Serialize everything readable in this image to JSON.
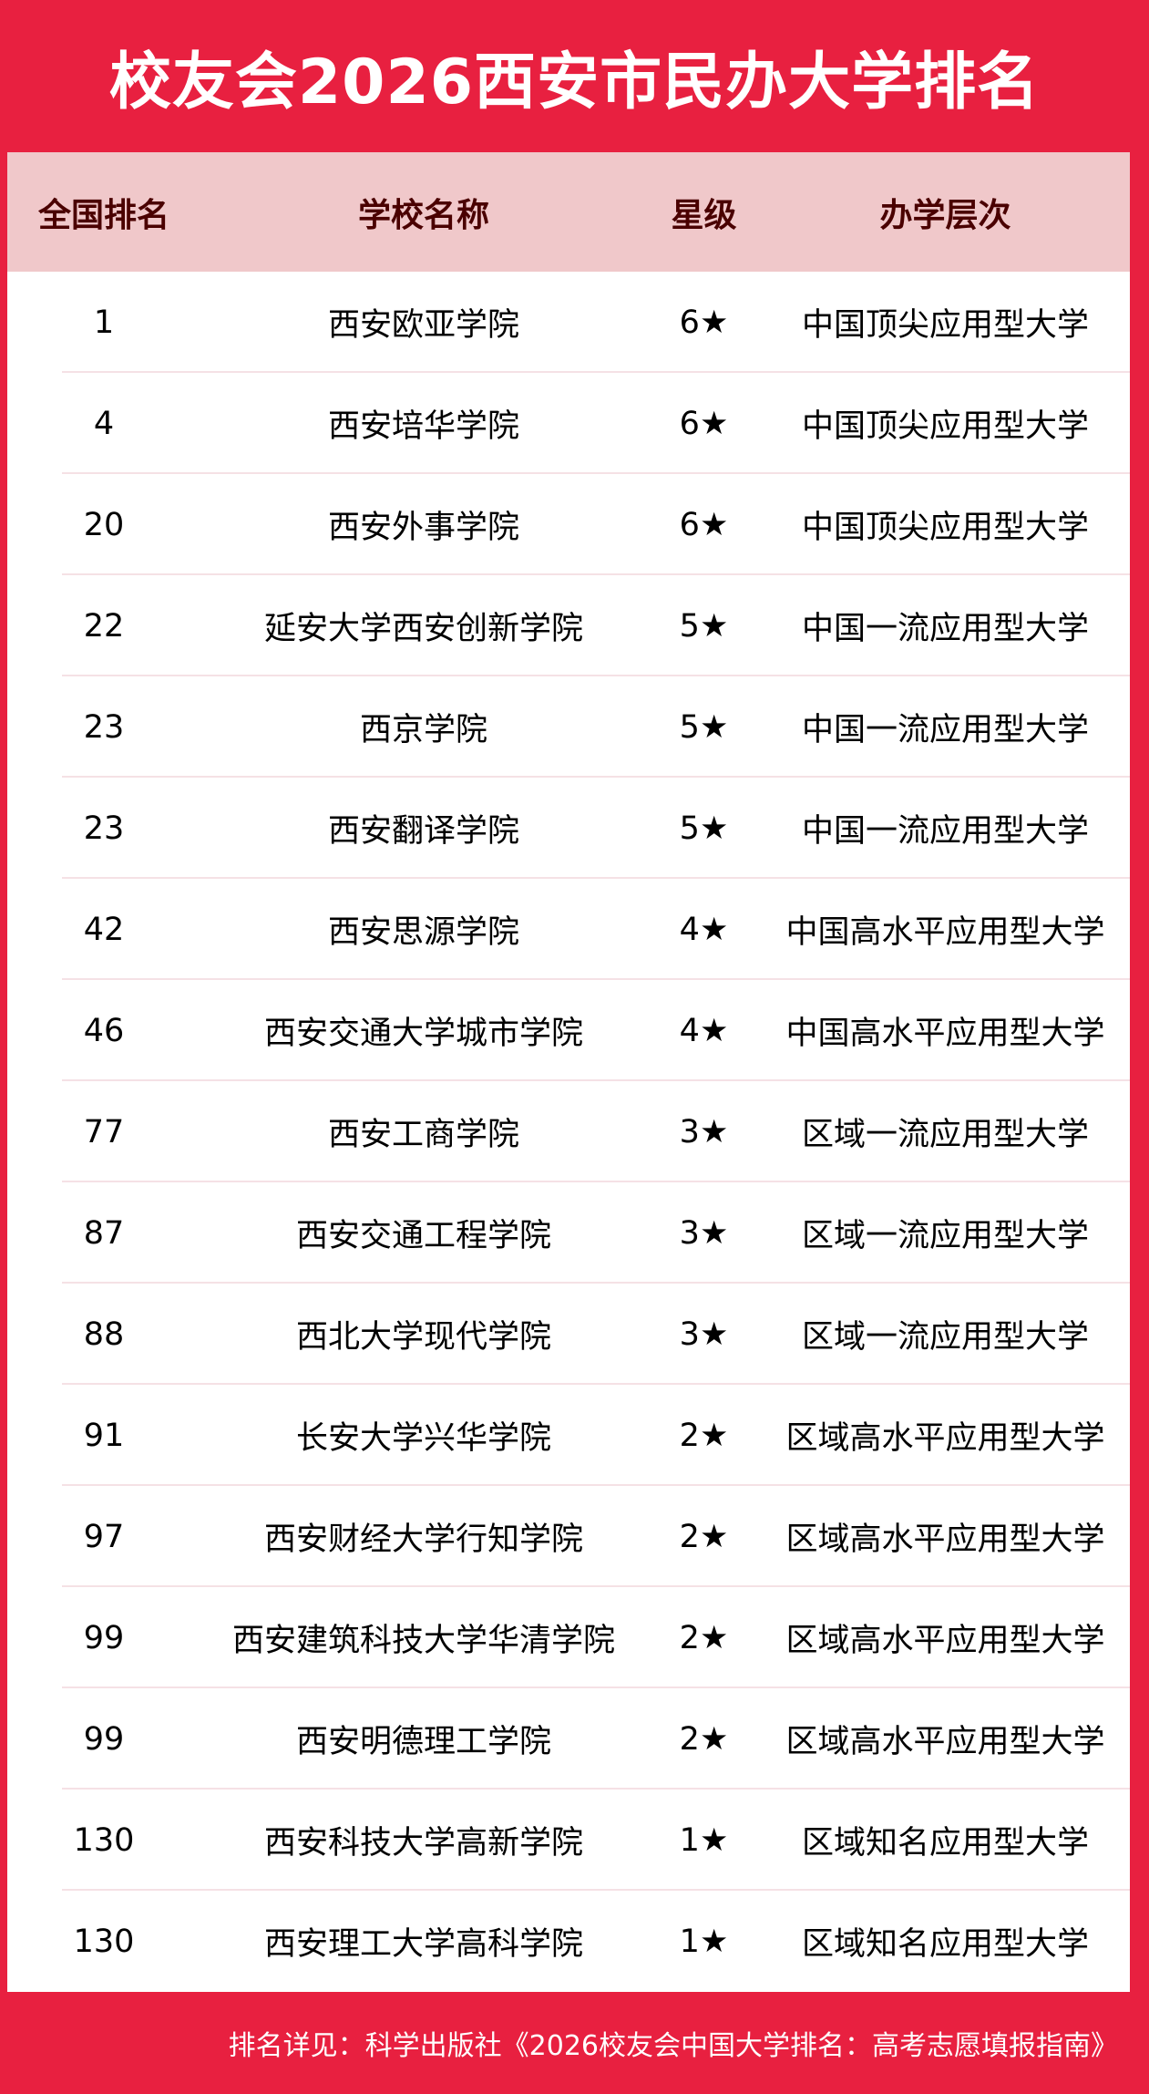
{
  "title": "校友会2026西安市民办大学排名",
  "colors": {
    "brand": "#e82040",
    "header_bg": "#f0c8ca",
    "header_text": "#4a0000"
  },
  "headers": [
    "全国排名",
    "学校名称",
    "星级",
    "办学层次"
  ],
  "rows": [
    [
      "1",
      "西安欧亚学院",
      "6★",
      "中国顶尖应用型大学"
    ],
    [
      "4",
      "西安培华学院",
      "6★",
      "中国顶尖应用型大学"
    ],
    [
      "20",
      "西安外事学院",
      "6★",
      "中国顶尖应用型大学"
    ],
    [
      "22",
      "延安大学西安创新学院",
      "5★",
      "中国一流应用型大学"
    ],
    [
      "23",
      "西京学院",
      "5★",
      "中国一流应用型大学"
    ],
    [
      "23",
      "西安翻译学院",
      "5★",
      "中国一流应用型大学"
    ],
    [
      "42",
      "西安思源学院",
      "4★",
      "中国高水平应用型大学"
    ],
    [
      "46",
      "西安交通大学城市学院",
      "4★",
      "中国高水平应用型大学"
    ],
    [
      "77",
      "西安工商学院",
      "3★",
      "区域一流应用型大学"
    ],
    [
      "87",
      "西安交通工程学院",
      "3★",
      "区域一流应用型大学"
    ],
    [
      "88",
      "西北大学现代学院",
      "3★",
      "区域一流应用型大学"
    ],
    [
      "91",
      "长安大学兴华学院",
      "2★",
      "区域高水平应用型大学"
    ],
    [
      "97",
      "西安财经大学行知学院",
      "2★",
      "区域高水平应用型大学"
    ],
    [
      "99",
      "西安建筑科技大学华清学院",
      "2★",
      "区域高水平应用型大学"
    ],
    [
      "99",
      "西安明德理工学院",
      "2★",
      "区域高水平应用型大学"
    ],
    [
      "130",
      "西安科技大学高新学院",
      "1★",
      "区域知名应用型大学"
    ],
    [
      "130",
      "西安理工大学高科学院",
      "1★",
      "区域知名应用型大学"
    ]
  ],
  "footer": "排名详见：科学出版社《2026校友会中国大学排名：高考志愿填报指南》"
}
